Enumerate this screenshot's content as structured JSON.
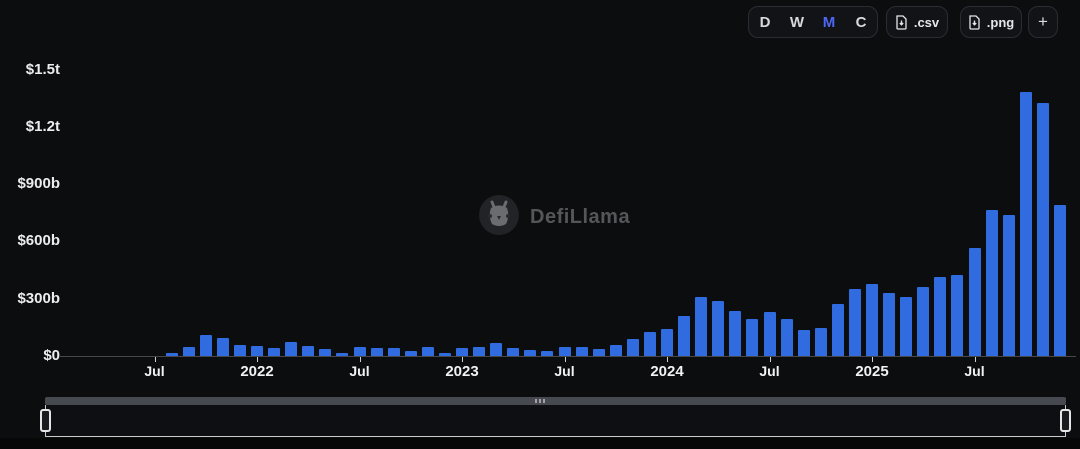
{
  "controls": {
    "intervals": [
      {
        "label": "D",
        "active": false
      },
      {
        "label": "W",
        "active": false
      },
      {
        "label": "M",
        "active": true
      },
      {
        "label": "C",
        "active": false
      }
    ],
    "csv_label": ".csv",
    "png_label": ".png",
    "plus_label": "+",
    "active_interval_color": "#4d68f2"
  },
  "watermark": {
    "text": "DefiLlama"
  },
  "chart_data": {
    "type": "bar",
    "title": "",
    "xlabel": "",
    "ylabel": "",
    "unit": "USD (billions)",
    "bar_color": "#306ce0",
    "grid": false,
    "y_axis": {
      "tick_labels": [
        "$1.5t",
        "$1.2t",
        "$900b",
        "$600b",
        "$300b",
        "$0"
      ],
      "tick_values_billions": [
        1500,
        1200,
        900,
        600,
        300,
        0
      ],
      "range_billions": [
        0,
        1500
      ]
    },
    "x_axis": {
      "ticks": [
        {
          "label": "Jul",
          "month_index": -1,
          "bold": false
        },
        {
          "label": "2022",
          "month_index": 5,
          "bold": true
        },
        {
          "label": "Jul",
          "month_index": 11,
          "bold": false
        },
        {
          "label": "2023",
          "month_index": 17,
          "bold": true
        },
        {
          "label": "Jul",
          "month_index": 23,
          "bold": false
        },
        {
          "label": "2024",
          "month_index": 29,
          "bold": true
        },
        {
          "label": "Jul",
          "month_index": 35,
          "bold": false
        },
        {
          "label": "2025",
          "month_index": 41,
          "bold": true
        },
        {
          "label": "Jul",
          "month_index": 47,
          "bold": false
        }
      ]
    },
    "months": [
      "2021-08",
      "2021-09",
      "2021-10",
      "2021-11",
      "2021-12",
      "2022-01",
      "2022-02",
      "2022-03",
      "2022-04",
      "2022-05",
      "2022-06",
      "2022-07",
      "2022-08",
      "2022-09",
      "2022-10",
      "2022-11",
      "2022-12",
      "2023-01",
      "2023-02",
      "2023-03",
      "2023-04",
      "2023-05",
      "2023-06",
      "2023-07",
      "2023-08",
      "2023-09",
      "2023-10",
      "2023-11",
      "2023-12",
      "2024-01",
      "2024-02",
      "2024-03",
      "2024-04",
      "2024-05",
      "2024-06",
      "2024-07",
      "2024-08",
      "2024-09",
      "2024-10",
      "2024-11",
      "2024-12",
      "2025-01",
      "2025-02",
      "2025-03",
      "2025-04",
      "2025-05",
      "2025-06",
      "2025-07",
      "2025-08",
      "2025-09",
      "2025-10",
      "2025-11",
      "2025-12"
    ],
    "values_billions": [
      14,
      45,
      110,
      96,
      58,
      54,
      44,
      72,
      54,
      35,
      18,
      47,
      44,
      40,
      27,
      48,
      17,
      40,
      45,
      66,
      40,
      31,
      25,
      46,
      49,
      39,
      58,
      91,
      128,
      140,
      210,
      308,
      289,
      233,
      193,
      230,
      196,
      137,
      144,
      272,
      351,
      375,
      328,
      309,
      359,
      416,
      424,
      565,
      764,
      737,
      1380,
      1325,
      792
    ]
  }
}
